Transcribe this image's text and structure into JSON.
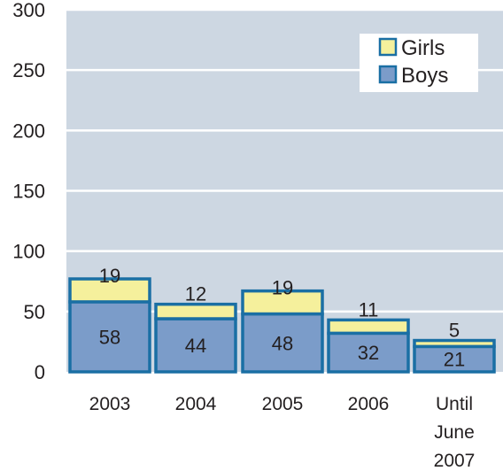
{
  "chart_data": {
    "type": "bar",
    "stacked": true,
    "categories": [
      [
        "2003"
      ],
      [
        "2004"
      ],
      [
        "2005"
      ],
      [
        "2006"
      ],
      [
        "Until",
        "June",
        "2007"
      ]
    ],
    "series": [
      {
        "name": "Boys",
        "values": [
          58,
          44,
          48,
          32,
          21
        ],
        "color": "#7b9cc9"
      },
      {
        "name": "Girls",
        "values": [
          19,
          12,
          19,
          11,
          5
        ],
        "color": "#f5f09c"
      }
    ],
    "ylim": [
      0,
      300
    ],
    "yticks": [
      0,
      50,
      100,
      150,
      200,
      250,
      300
    ],
    "grid": true,
    "legend_placement": "top-right",
    "legend_order": [
      "Girls",
      "Boys"
    ],
    "colors": {
      "plot_background": "#cdd7e2",
      "gridline": "#ffffff",
      "bar_outline": "#1a6fa4",
      "legend_background": "#ffffff"
    }
  }
}
